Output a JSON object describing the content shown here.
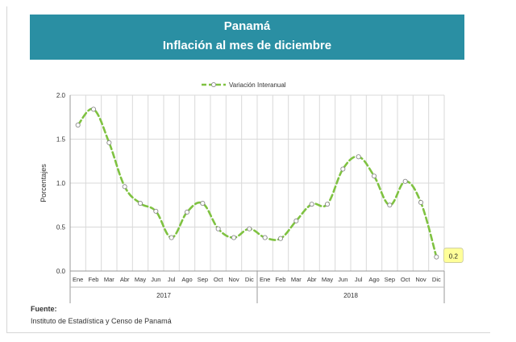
{
  "header": {
    "title_line1": "Panamá",
    "title_line2": "Inflación al mes de diciembre"
  },
  "footer": {
    "source_label": "Fuente:",
    "source_text": "Instituto de Estadística y Censo de Panamá"
  },
  "colors": {
    "banner": "#2a8fa3",
    "series_line": "#7fc241",
    "callout_fill": "#ffff99"
  },
  "chart_data": {
    "type": "line",
    "title": "",
    "xlabel": "",
    "ylabel": "Porcentajes",
    "ylim": [
      0.0,
      2.0
    ],
    "yticks": [
      "0.0",
      "0.5",
      "1.0",
      "1.5",
      "2.0"
    ],
    "grid": true,
    "legend": "top",
    "categories": [
      "Ene",
      "Feb",
      "Mar",
      "Abr",
      "May",
      "Jun",
      "Jul",
      "Ago",
      "Sep",
      "Oct",
      "Nov",
      "Dic",
      "Ene",
      "Feb",
      "Mar",
      "Abr",
      "May",
      "Jun",
      "Jul",
      "Ago",
      "Sep",
      "Oct",
      "Nov",
      "Dic"
    ],
    "year_groups": [
      {
        "label": "2017",
        "span": 12
      },
      {
        "label": "2018",
        "span": 12
      }
    ],
    "series": [
      {
        "name": "Variación Interanual",
        "values": [
          1.66,
          1.84,
          1.46,
          0.96,
          0.77,
          0.68,
          0.38,
          0.67,
          0.77,
          0.48,
          0.38,
          0.48,
          0.38,
          0.37,
          0.57,
          0.76,
          0.76,
          1.16,
          1.3,
          1.08,
          0.75,
          1.02,
          0.78,
          0.16
        ]
      }
    ],
    "annotation": {
      "label": "0.2",
      "index": 23
    }
  }
}
